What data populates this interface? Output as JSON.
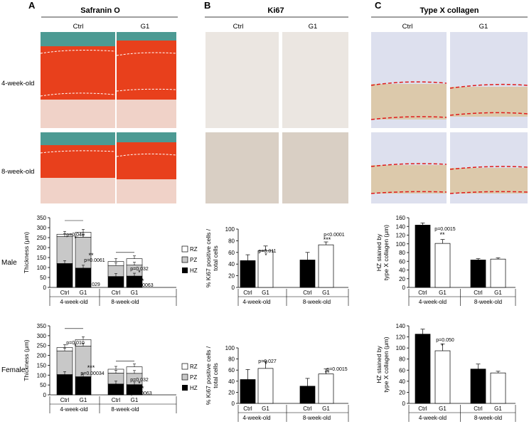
{
  "panels": [
    {
      "letter": "A",
      "title": "Safranin O"
    },
    {
      "letter": "B",
      "title": "Ki67"
    },
    {
      "letter": "C",
      "title": "Type X collagen"
    }
  ],
  "column_labels": [
    "Ctrl",
    "G1"
  ],
  "row_labels": [
    "4-week-old",
    "8-week-old"
  ],
  "sex_labels": [
    "Male",
    "Female"
  ],
  "legend_items": [
    "RZ",
    "PZ",
    "HZ"
  ],
  "colors": {
    "rz": "#ffffff",
    "pz": "#c8c8c8",
    "hz": "#000000",
    "ctrl_bar": "#000000",
    "g1_bar": "#ffffff",
    "safranin_red": "#e8401c",
    "ki67_bg": "#ebe6e1",
    "collagen_bg": "#dde0ee",
    "dashed_white": "#ffffff",
    "dashed_red": "#e01b1b"
  },
  "chart_data": [
    {
      "type": "bar",
      "id": "A-male",
      "stacked": true,
      "ylabel": "Thickness (μm)",
      "ylim": [
        0,
        350
      ],
      "yticks": [
        0,
        50,
        100,
        150,
        200,
        250,
        300,
        350
      ],
      "categories": [
        "Ctrl",
        "G1",
        "Ctrl",
        "G1"
      ],
      "groups": [
        "4-week-old",
        "8-week-old"
      ],
      "series": [
        {
          "name": "HZ",
          "values": [
            120,
            97,
            55,
            57
          ]
        },
        {
          "name": "PZ",
          "values": [
            135,
            155,
            55,
            55
          ]
        },
        {
          "name": "RZ",
          "values": [
            12,
            25,
            20,
            32
          ]
        }
      ],
      "annotations": [
        "p=0.048",
        "*",
        "p=0.0061",
        "**",
        "p=0.029",
        "*",
        "p=0.032",
        "*",
        "p=0.0063",
        "**"
      ]
    },
    {
      "type": "bar",
      "id": "A-female",
      "stacked": true,
      "ylabel": "Thickness (μm)",
      "ylim": [
        0,
        350
      ],
      "yticks": [
        0,
        50,
        100,
        150,
        200,
        250,
        300,
        350
      ],
      "categories": [
        "Ctrl",
        "G1",
        "Ctrl",
        "G1"
      ],
      "groups": [
        "4-week-old",
        "8-week-old"
      ],
      "series": [
        {
          "name": "HZ",
          "values": [
            103,
            92,
            55,
            52
          ]
        },
        {
          "name": "PZ",
          "values": [
            120,
            155,
            55,
            57
          ]
        },
        {
          "name": "RZ",
          "values": [
            17,
            33,
            20,
            33
          ]
        }
      ],
      "annotations": [
        "p=0.010",
        "*",
        "***",
        "p=0.00034",
        "p=0.032",
        "*",
        "**",
        "p=0.0063"
      ]
    },
    {
      "type": "bar",
      "id": "B-male",
      "ylabel": "% Ki67 positive cells / total cells",
      "ylim": [
        0,
        100
      ],
      "yticks": [
        0,
        20,
        40,
        60,
        80,
        100
      ],
      "categories": [
        "Ctrl",
        "G1",
        "Ctrl",
        "G1"
      ],
      "groups": [
        "4-week-old",
        "8-week-old"
      ],
      "values": [
        46,
        63,
        47,
        73
      ],
      "errors": [
        10,
        8,
        13,
        5
      ],
      "annotations": [
        "p=0.011",
        "*",
        "p<0.0001",
        "***"
      ]
    },
    {
      "type": "bar",
      "id": "B-female",
      "ylabel": "% Ki67 positive cells / total cells",
      "ylim": [
        0,
        100
      ],
      "yticks": [
        0,
        20,
        40,
        60,
        80,
        100
      ],
      "categories": [
        "Ctrl",
        "G1",
        "Ctrl",
        "G1"
      ],
      "groups": [
        "4-week-old",
        "8-week-old"
      ],
      "values": [
        43,
        63,
        31,
        53
      ],
      "errors": [
        18,
        13,
        14,
        9
      ],
      "annotations": [
        "p=0.027",
        "*",
        "p=0.0015",
        "**"
      ]
    },
    {
      "type": "bar",
      "id": "C-male",
      "ylabel": "HZ stained by type X collagen (μm)",
      "ylim": [
        0,
        160
      ],
      "yticks": [
        0,
        20,
        40,
        60,
        80,
        100,
        120,
        140,
        160
      ],
      "categories": [
        "Ctrl",
        "G1",
        "Ctrl",
        "G1"
      ],
      "groups": [
        "4-week-old",
        "8-week-old"
      ],
      "values": [
        143,
        101,
        63,
        65
      ],
      "errors": [
        5,
        9,
        3,
        3
      ],
      "annotations": [
        "p=0.0015",
        "**"
      ]
    },
    {
      "type": "bar",
      "id": "C-female",
      "ylabel": "HZ stained by type X collagen (μm)",
      "ylim": [
        0,
        140
      ],
      "yticks": [
        0,
        20,
        40,
        60,
        80,
        100,
        120,
        140
      ],
      "categories": [
        "Ctrl",
        "G1",
        "Ctrl",
        "G1"
      ],
      "groups": [
        "4-week-old",
        "8-week-old"
      ],
      "values": [
        125,
        95,
        62,
        55
      ],
      "errors": [
        9,
        12,
        9,
        3
      ],
      "annotations": [
        "p=0.050",
        "*"
      ]
    }
  ]
}
